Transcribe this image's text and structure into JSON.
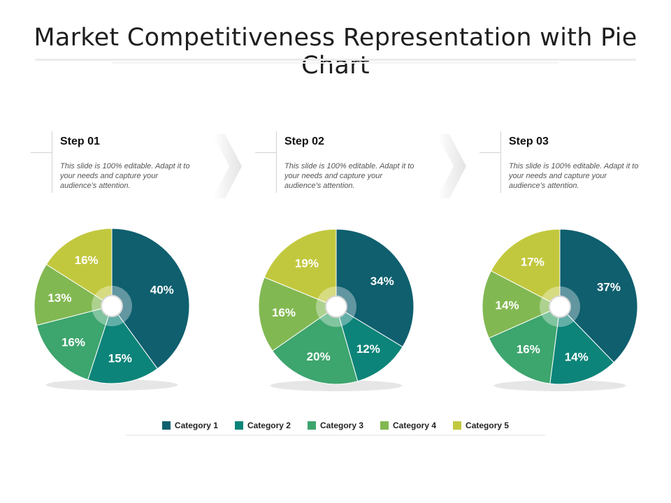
{
  "title": "Market Competitiveness Representation with Pie Chart",
  "steps": [
    {
      "heading": "Step 01",
      "description": "This slide is 100% editable. Adapt it to your needs and capture your audience's attention."
    },
    {
      "heading": "Step 02",
      "description": "This slide is 100% editable. Adapt it to your needs and capture your audience's attention."
    },
    {
      "heading": "Step 03",
      "description": "This slide is 100% editable. Adapt it to your needs and capture your audience's attention."
    }
  ],
  "colors": [
    "#0f5f6e",
    "#0d8479",
    "#3da56e",
    "#82b852",
    "#c2c83e"
  ],
  "chart_data": [
    {
      "type": "pie",
      "categories": [
        "Category 1",
        "Category 2",
        "Category 3",
        "Category 4",
        "Category 5"
      ],
      "values": [
        40,
        15,
        16,
        13,
        16
      ],
      "labels": [
        "40%",
        "15%",
        "16%",
        "13%",
        "16%"
      ]
    },
    {
      "type": "pie",
      "categories": [
        "Category 1",
        "Category 2",
        "Category 3",
        "Category 4",
        "Category 5"
      ],
      "values": [
        34,
        12,
        20,
        16,
        19
      ],
      "labels": [
        "34%",
        "12%",
        "20%",
        "16%",
        "19%"
      ]
    },
    {
      "type": "pie",
      "categories": [
        "Category 1",
        "Category 2",
        "Category 3",
        "Category 4",
        "Category 5"
      ],
      "values": [
        37,
        14,
        16,
        14,
        17
      ],
      "labels": [
        "37%",
        "14%",
        "16%",
        "14%",
        "17%"
      ]
    }
  ],
  "legend": [
    "Category 1",
    "Category 2",
    "Category 3",
    "Category 4",
    "Category 5"
  ]
}
